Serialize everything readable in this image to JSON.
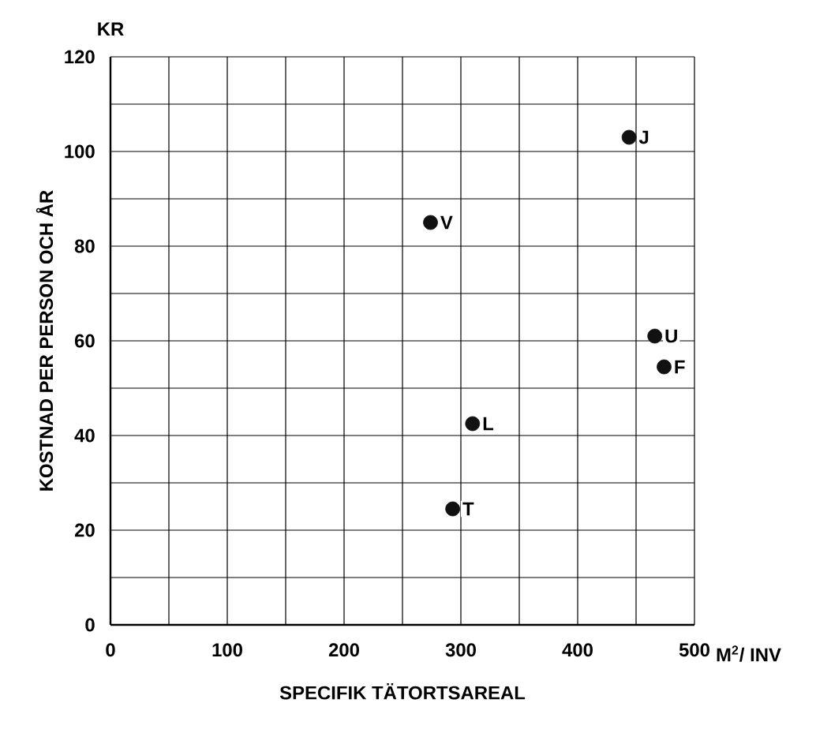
{
  "chart_data": {
    "type": "scatter",
    "xlabel": "SPECIFIK TÄTORTSAREAL",
    "ylabel": "KOSTNAD PER PERSON OCH ÅR",
    "x": [
      444,
      274,
      466,
      474,
      310,
      293
    ],
    "values": [
      103,
      85,
      61,
      54.5,
      42.5,
      24.5
    ],
    "color": "#111111",
    "marker": "circle",
    "xlim": [
      0,
      500
    ],
    "ylim": [
      0,
      120
    ],
    "xticks": [
      0,
      100,
      200,
      300,
      400,
      500
    ],
    "yticks": [
      0,
      20,
      40,
      60,
      80,
      100,
      120
    ],
    "grid": true,
    "annotations": [
      {
        "text": "J",
        "x": 444,
        "y": 103
      },
      {
        "text": "V",
        "x": 274,
        "y": 85
      },
      {
        "text": "U",
        "x": 466,
        "y": 61
      },
      {
        "text": "F",
        "x": 474,
        "y": 54.5
      },
      {
        "text": "L",
        "x": 310,
        "y": 42.5
      },
      {
        "text": "T",
        "x": 293,
        "y": 24.5
      },
      "KR",
      "M$^{2}$/ INV"
    ]
  }
}
